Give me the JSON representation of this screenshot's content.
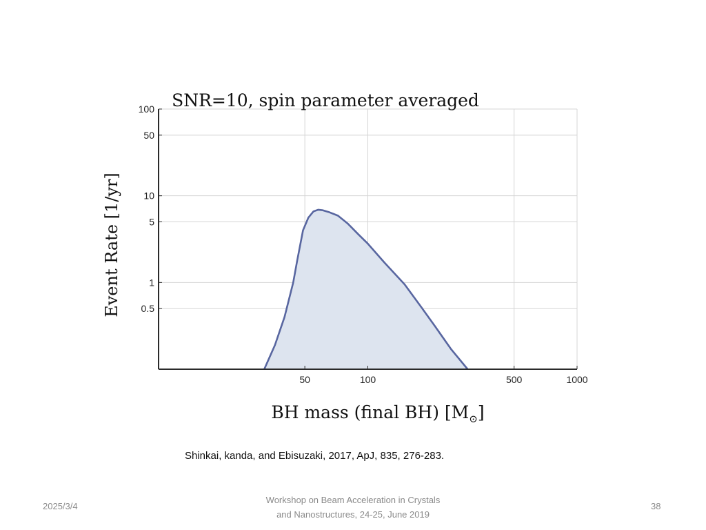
{
  "chart_data": {
    "type": "area",
    "title": "SNR=10, spin parameter averaged",
    "xlabel": "BH mass (final BH) [M",
    "xlabel_symbol": "⊙",
    "xlabel_tail": "]",
    "ylabel": "Event Rate [1/yr]",
    "x_scale": "log",
    "y_scale": "log",
    "xlim": [
      10,
      1000
    ],
    "ylim": [
      0.1,
      100
    ],
    "x_ticks": [
      50,
      100,
      500,
      1000
    ],
    "x_tick_labels": [
      "50",
      "100",
      "500",
      "1000"
    ],
    "y_ticks": [
      0.5,
      1,
      5,
      10,
      50,
      100
    ],
    "y_tick_labels": [
      "0.5",
      "1",
      "5",
      "10",
      "50",
      "100"
    ],
    "grid": true,
    "series": [
      {
        "x": [
          32,
          36,
          40,
          44,
          46,
          49,
          52,
          55,
          58,
          61,
          65,
          72,
          80,
          90,
          100,
          120,
          150,
          180,
          210,
          250,
          300
        ],
        "y": [
          0.1,
          0.19,
          0.4,
          1.0,
          1.8,
          4.0,
          5.6,
          6.6,
          6.9,
          6.8,
          6.5,
          5.9,
          4.8,
          3.6,
          2.8,
          1.7,
          0.95,
          0.52,
          0.31,
          0.17,
          0.1
        ]
      }
    ],
    "line_color": "#5866a0",
    "fill_color": "#dde4ef"
  },
  "citation": "Shinkai, kanda, and Ebisuzaki, 2017, ApJ, 835, 276-283.",
  "footer": {
    "date": "2025/3/4",
    "event_line1": "Workshop on Beam Acceleration in Crystals",
    "event_line2": "and Nanostructures, 24-25, June 2019",
    "page_number": "38"
  }
}
